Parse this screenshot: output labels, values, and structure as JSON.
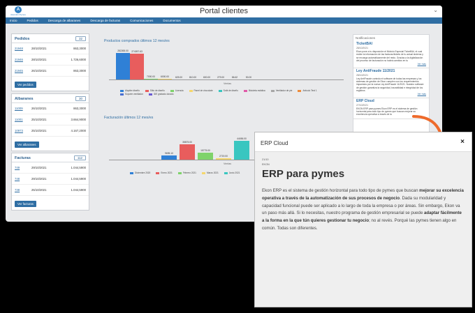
{
  "app": {
    "title": "Portal clientes",
    "logo_text": "Atención Pymes",
    "menu": [
      "Inicio",
      "Pedidos",
      "Descarga de albaranes",
      "Descarga de facturas",
      "Comunicaciones",
      "Documentos"
    ]
  },
  "pedidos": {
    "title": "Pedidos",
    "count": "32",
    "rows": [
      {
        "id": "21948",
        "date": "28/10/2021",
        "amount": "863,3000"
      },
      {
        "id": "21946",
        "date": "28/10/2021",
        "amount": "1.726,6000"
      },
      {
        "id": "21945",
        "date": "26/10/2021",
        "amount": "863,3000"
      }
    ],
    "button": "Ver pedidos"
  },
  "albaranes": {
    "title": "Albaranes",
    "count": "30",
    "rows": [
      {
        "id": "11009",
        "date": "26/10/2021",
        "amount": "863,3000"
      },
      {
        "id": "11001",
        "date": "25/10/2021",
        "amount": "3.664,9000"
      },
      {
        "id": "10973",
        "date": "25/10/2021",
        "amount": "4.167,2000"
      }
    ],
    "button": "Ver albaranes"
  },
  "facturas": {
    "title": "Facturas",
    "count": "112",
    "rows": [
      {
        "id": "749",
        "date": "29/10/2021",
        "amount": "1.044,5900"
      },
      {
        "id": "748",
        "date": "29/10/2021",
        "amount": "1.044,5900"
      },
      {
        "id": "738",
        "date": "25/10/2021",
        "amount": "1.044,5900"
      }
    ],
    "button": "Ver facturas"
  },
  "chart1": {
    "title": "Productos comprados últimos 12 mes/es",
    "xlabel": "Ventas",
    "legend": [
      "Alquiler diseño",
      "Sitio de diseño",
      "Licencia",
      "Panel de chocolate",
      "Sofá de diseño",
      "Bicicleta estática",
      "Ventilador de pie",
      "Artículo Test 1",
      "Soporte ventilador",
      "IDE grabado dorado"
    ],
    "colors": [
      "#2f80d6",
      "#e85d5d",
      "#7fd36b",
      "#f5d76e",
      "#39c6c0",
      "#e05aa8",
      "#a7a7a7",
      "#ee8b3a",
      "#4a6fd1",
      "#6b5bd2"
    ]
  },
  "chart2": {
    "title": "Facturación últimos 12 mes/es",
    "xlabel": "Ventas",
    "legend": [
      "Diciembre 2020",
      "Enero 2021",
      "Febrero 2021",
      "Marzo 2021",
      "Junio 2021"
    ],
    "colors": [
      "#2f80d6",
      "#e85d5d",
      "#7fd36b",
      "#f5d76e",
      "#39c6c0"
    ]
  },
  "chart_data": [
    {
      "type": "bar",
      "title": "Productos comprados últimos 12 mes/es",
      "xlabel": "Ventas",
      "categories": [
        "Alquiler diseño",
        "Sitio de diseño",
        "Licencia",
        "Panel de chocolate",
        "Sofá de diseño",
        "Bicicleta estática",
        "Ventilador de pie",
        "Artículo Test 1",
        "Soporte ventilador",
        "IDE grabado dorado"
      ],
      "values": [
        282265.0,
        274097.63,
        7000.0,
        6000.0,
        625.0,
        810.0,
        600.0,
        279.0,
        86.62,
        50.0
      ],
      "labels": [
        "282265.00",
        "274097.63",
        "7000.00",
        "6000.00",
        "625.00",
        "810.00",
        "600.00",
        "279.00",
        "86.62",
        "50.00"
      ],
      "ylim": [
        0,
        330000
      ]
    },
    {
      "type": "bar",
      "title": "Facturación últimos 12 mes/es",
      "xlabel": "Ventas",
      "categories": [
        "Diciembre 2020",
        "Enero 2021",
        "Febrero 2021",
        "Marzo 2021",
        "Junio 2021"
      ],
      "values": [
        9695.1,
        35875.0,
        15775.0,
        2719.0,
        44456.0
      ],
      "labels": [
        "9695.10",
        "35875.00",
        "15775.00",
        "2719.00",
        "44456.00"
      ],
      "ylim": [
        0,
        80000
      ]
    }
  ],
  "notifications": {
    "header": "Notificaciones",
    "items": [
      {
        "title": "TicketBAI",
        "date": "28/10/2021",
        "body": "Ekon pone a tu disposición el Módulo Especial TicketBAI, el cual recibe la información de las facturas/tickets de tu actual sistema y se encarga automáticamente del resto. Gracias a la digitalización del proceso de facturación no habrá cambios en tu",
        "more": "Ver más"
      },
      {
        "title": "Ley AntiFraude 11/2021",
        "date": "28/10/2021",
        "body": "Ley AntiFraude controla el software de todas las empresas y los sistemas de gestión de Ekon cumplen con los requerimientos impuestos por la nueva Ley AntiFraude 11/2021. Nuestro software de gestión garantiza la seguridad, trazabilidad e integridad de los registros",
        "more": "Ver más"
      },
      {
        "title": "ERP Cloud",
        "date": "27/10/2021",
        "body": "EKON ERP para pymes Ekon ERP es el sistema de gestión horizontal para todo tipo de pymes que buscan mejorar su excelencia operativa a través de la",
        "more": ""
      }
    ]
  },
  "popup": {
    "title": "ERP Cloud",
    "date": "21/10",
    "author": "EKON",
    "heading": "ERP para pymes",
    "p1": "Ekon ERP es el sistema de gestión horizontal para todo tipo de pymes que buscan ",
    "p1b": "mejorar su excelencia operativa a través de la automatización de sus procesos de negocio",
    "p2": ". Dada su modularidad y capacidad funcional puede ser aplicado a lo largo de toda la empresa o por áreas. Sin embargo, Ekon va un paso más allá. Si lo necesitas, nuestro programa de gestión empresarial se puede ",
    "p2b": "adaptar fácilmente a la forma en la que tún quieres gestionar tu negocio",
    "p3": "; no al revés. Porqué las pymes tienen algo en común. Todas son diferentes.",
    "close_icon": "close-icon",
    "accent": "#ee6a2b"
  }
}
